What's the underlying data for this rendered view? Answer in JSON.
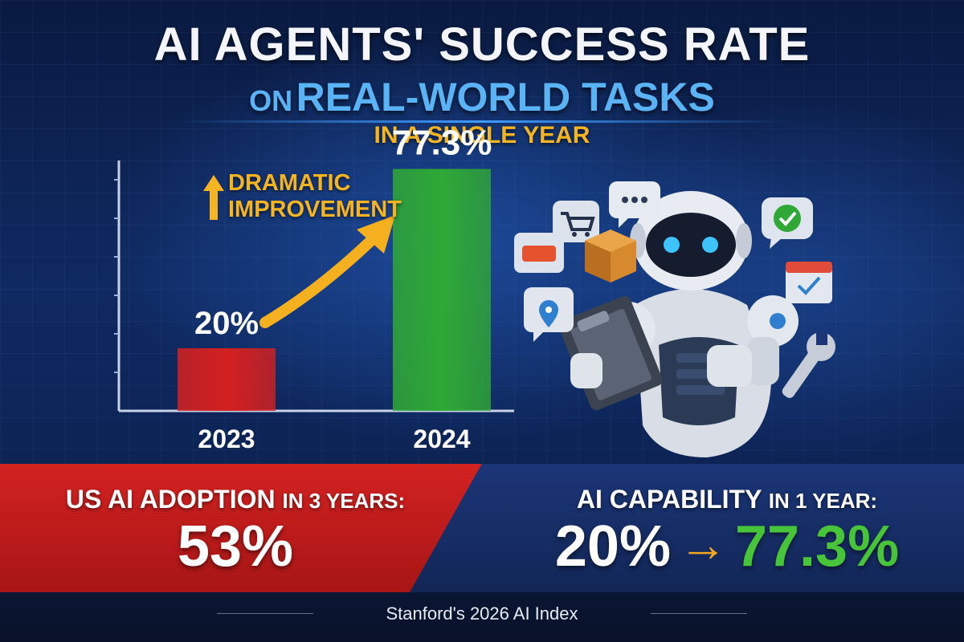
{
  "header": {
    "title_line1": "AI AGENTS' SUCCESS RATE",
    "title_line2_prefix": "ON",
    "title_line2_main": "REAL-WORLD TASKS",
    "subtitle": "IN A SINGLE YEAR"
  },
  "annotation": {
    "line1": "DRAMATIC",
    "line2": "IMPROVEMENT"
  },
  "chart_data": {
    "type": "bar",
    "categories": [
      "2023",
      "2024"
    ],
    "values": [
      20,
      77.3
    ],
    "value_labels": [
      "20%",
      "77.3%"
    ],
    "unit": "%",
    "ylim": [
      0,
      100
    ],
    "colors": [
      "#d42020",
      "#2fa836"
    ],
    "grid": false,
    "title": "AI AGENTS' SUCCESS RATE ON REAL-WORLD TASKS"
  },
  "stats": {
    "adoption_label_main": "US AI ADOPTION",
    "adoption_label_small": "IN 3 YEARS:",
    "adoption_value": "53%",
    "capability_label_main": "AI CAPABILITY",
    "capability_label_small": "IN 1 YEAR:",
    "capability_from": "20%",
    "capability_arrow": "→",
    "capability_to": "77.3%"
  },
  "footer": {
    "source": "Stanford's 2026 AI Index"
  },
  "icons": [
    "robot-illustration",
    "shopping-cart-icon",
    "chat-bubble-icon",
    "checkmark-icon",
    "package-icon",
    "calendar-icon",
    "location-pin-icon",
    "clipboard-icon",
    "wrench-icon",
    "up-arrow-icon",
    "trend-arrow-icon"
  ]
}
